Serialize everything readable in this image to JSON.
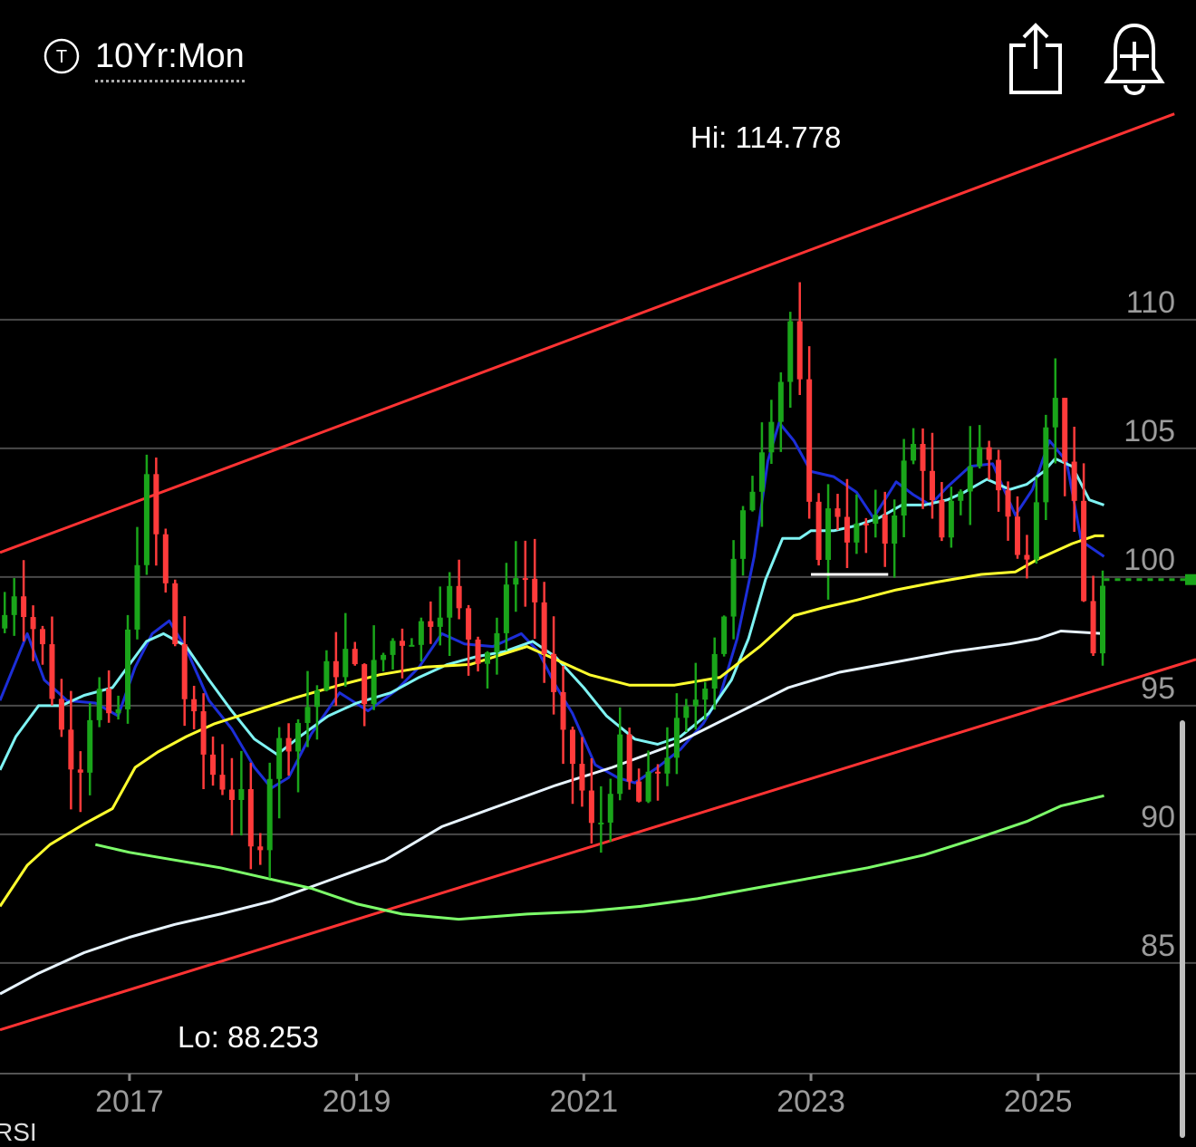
{
  "header": {
    "timeframe_label": "10Yr:Mon",
    "timeframe_icon": "T",
    "share_icon": "share-icon",
    "alert_icon": "add-alert-bell-icon"
  },
  "indicator_label": "RSI",
  "chart_data": {
    "type": "candlestick",
    "title": "",
    "annotations": {
      "hi": "Hi: 114.778",
      "lo": "Lo: 88.253"
    },
    "y_ticks": [
      110,
      105,
      100,
      95,
      90,
      85
    ],
    "x_ticks": [
      "2017",
      "2019",
      "2021",
      "2023",
      "2025"
    ],
    "ylim": [
      80.7,
      118.2
    ],
    "xlim": [
      2015.86,
      2026.39
    ],
    "grid": true,
    "colors": {
      "up": "#1aa51a",
      "down": "#ff3b3b",
      "channel": "#ff3333",
      "ma_blue": "#1c2ed8",
      "ma_cyan": "#7ff3f3",
      "ma_yellow": "#ffff2e",
      "ma_white": "#e8f4ff",
      "ma_green": "#7dff6a",
      "last_price": "#1aa51a"
    },
    "channel_lines": [
      {
        "name": "upper",
        "points": [
          [
            2015.86,
            100.95
          ],
          [
            2026.2,
            118.0
          ]
        ]
      },
      {
        "name": "lower",
        "points": [
          [
            2015.86,
            82.4
          ],
          [
            2026.39,
            96.8
          ]
        ]
      }
    ],
    "support_line": {
      "y": 100.1,
      "x": [
        2023.0,
        2023.68
      ]
    },
    "last_price": 99.9,
    "price_path": [
      [
        2015.86,
        98
      ],
      [
        2016.0,
        99.8
      ],
      [
        2016.25,
        97
      ],
      [
        2016.4,
        94
      ],
      [
        2016.55,
        92.5
      ],
      [
        2016.7,
        96
      ],
      [
        2016.85,
        93.5
      ],
      [
        2016.95,
        96
      ],
      [
        2017.05,
        100.5
      ],
      [
        2017.15,
        103.5
      ],
      [
        2017.3,
        100
      ],
      [
        2017.5,
        95
      ],
      [
        2017.7,
        92.5
      ],
      [
        2017.85,
        92
      ],
      [
        2018.0,
        91
      ],
      [
        2018.05,
        89
      ],
      [
        2018.15,
        90
      ],
      [
        2018.25,
        93
      ],
      [
        2018.5,
        94.5
      ],
      [
        2018.7,
        96
      ],
      [
        2018.9,
        97
      ],
      [
        2019.05,
        95.5
      ],
      [
        2019.3,
        97.5
      ],
      [
        2019.55,
        98
      ],
      [
        2019.8,
        99.5
      ],
      [
        2019.95,
        98
      ],
      [
        2020.1,
        97
      ],
      [
        2020.25,
        98
      ],
      [
        2020.4,
        100.5
      ],
      [
        2020.55,
        99.5
      ],
      [
        2020.7,
        96
      ],
      [
        2020.8,
        93.5
      ],
      [
        2020.95,
        92.5
      ],
      [
        2021.05,
        90
      ],
      [
        2021.15,
        90.5
      ],
      [
        2021.3,
        93.5
      ],
      [
        2021.45,
        91
      ],
      [
        2021.6,
        92
      ],
      [
        2021.75,
        93.5
      ],
      [
        2021.9,
        94.5
      ],
      [
        2022.05,
        96
      ],
      [
        2022.2,
        98
      ],
      [
        2022.35,
        101
      ],
      [
        2022.5,
        104
      ],
      [
        2022.6,
        106
      ],
      [
        2022.75,
        108
      ],
      [
        2022.82,
        110
      ],
      [
        2022.88,
        109
      ],
      [
        2022.95,
        103
      ],
      [
        2023.05,
        101
      ],
      [
        2023.2,
        103
      ],
      [
        2023.35,
        101.5
      ],
      [
        2023.5,
        102
      ],
      [
        2023.65,
        101.5
      ],
      [
        2023.8,
        104
      ],
      [
        2023.95,
        105.5
      ],
      [
        2024.05,
        103
      ],
      [
        2024.15,
        101
      ],
      [
        2024.3,
        103.5
      ],
      [
        2024.45,
        105
      ],
      [
        2024.6,
        104.5
      ],
      [
        2024.75,
        102
      ],
      [
        2024.85,
        100
      ],
      [
        2025.0,
        104
      ],
      [
        2025.1,
        107.5
      ],
      [
        2025.2,
        106
      ],
      [
        2025.3,
        103
      ],
      [
        2025.4,
        99
      ],
      [
        2025.5,
        97
      ],
      [
        2025.58,
        99.9
      ]
    ],
    "series": [
      {
        "points": [
          [
            2015.86,
            95.2
          ],
          [
            2016.1,
            97.8
          ],
          [
            2016.25,
            96
          ],
          [
            2016.45,
            95.2
          ],
          [
            2016.7,
            95.1
          ],
          [
            2016.9,
            94.6
          ],
          [
            2017.05,
            96.5
          ],
          [
            2017.2,
            97.8
          ],
          [
            2017.35,
            98.3
          ],
          [
            2017.5,
            97.2
          ],
          [
            2017.7,
            95.2
          ],
          [
            2017.9,
            94.1
          ],
          [
            2018.1,
            92.6
          ],
          [
            2018.25,
            91.8
          ],
          [
            2018.4,
            92.2
          ],
          [
            2018.6,
            93.9
          ],
          [
            2018.85,
            95.5
          ],
          [
            2019.1,
            94.8
          ],
          [
            2019.35,
            95.6
          ],
          [
            2019.55,
            96.5
          ],
          [
            2019.75,
            97.8
          ],
          [
            2019.95,
            97.4
          ],
          [
            2020.2,
            97.3
          ],
          [
            2020.45,
            97.8
          ],
          [
            2020.6,
            97.1
          ],
          [
            2020.75,
            95.8
          ],
          [
            2020.9,
            94.7
          ],
          [
            2021.1,
            92.7
          ],
          [
            2021.3,
            92.2
          ],
          [
            2021.45,
            92
          ],
          [
            2021.65,
            92.6
          ],
          [
            2021.85,
            93.3
          ],
          [
            2022.05,
            94.3
          ],
          [
            2022.2,
            95.4
          ],
          [
            2022.35,
            97.6
          ],
          [
            2022.5,
            100.8
          ],
          [
            2022.62,
            104.5
          ],
          [
            2022.72,
            106
          ],
          [
            2022.85,
            105.3
          ],
          [
            2023.0,
            104.1
          ],
          [
            2023.2,
            103.9
          ],
          [
            2023.4,
            103.3
          ],
          [
            2023.55,
            102.3
          ],
          [
            2023.75,
            103.7
          ],
          [
            2023.9,
            103.2
          ],
          [
            2024.05,
            102.8
          ],
          [
            2024.2,
            103.5
          ],
          [
            2024.4,
            104.3
          ],
          [
            2024.6,
            104.4
          ],
          [
            2024.8,
            102.4
          ],
          [
            2024.95,
            103.4
          ],
          [
            2025.1,
            105.3
          ],
          [
            2025.25,
            104.5
          ],
          [
            2025.38,
            101.4
          ],
          [
            2025.58,
            100.8
          ]
        ]
      },
      {
        "points": [
          [
            2015.86,
            92.5
          ],
          [
            2016.0,
            93.8
          ],
          [
            2016.2,
            95
          ],
          [
            2016.4,
            95
          ],
          [
            2016.6,
            95.4
          ],
          [
            2016.85,
            95.7
          ],
          [
            2017.0,
            96.6
          ],
          [
            2017.15,
            97.5
          ],
          [
            2017.3,
            97.8
          ],
          [
            2017.5,
            97.3
          ],
          [
            2017.7,
            96
          ],
          [
            2017.9,
            94.8
          ],
          [
            2018.1,
            93.7
          ],
          [
            2018.3,
            93.1
          ],
          [
            2018.5,
            93.8
          ],
          [
            2018.75,
            94.6
          ],
          [
            2019.0,
            95.1
          ],
          [
            2019.3,
            95.5
          ],
          [
            2019.55,
            96.1
          ],
          [
            2019.8,
            96.6
          ],
          [
            2020.05,
            96.9
          ],
          [
            2020.3,
            97.1
          ],
          [
            2020.55,
            97.5
          ],
          [
            2020.75,
            96.9
          ],
          [
            2021.0,
            95.7
          ],
          [
            2021.2,
            94.6
          ],
          [
            2021.45,
            93.7
          ],
          [
            2021.65,
            93.5
          ],
          [
            2021.85,
            93.8
          ],
          [
            2022.1,
            94.7
          ],
          [
            2022.3,
            96
          ],
          [
            2022.45,
            97.6
          ],
          [
            2022.6,
            99.9
          ],
          [
            2022.75,
            101.5
          ],
          [
            2022.9,
            101.5
          ],
          [
            2023.0,
            101.8
          ],
          [
            2023.2,
            101.8
          ],
          [
            2023.4,
            102
          ],
          [
            2023.6,
            102.3
          ],
          [
            2023.8,
            102.8
          ],
          [
            2024.0,
            102.8
          ],
          [
            2024.2,
            103
          ],
          [
            2024.35,
            103.3
          ],
          [
            2024.55,
            103.8
          ],
          [
            2024.75,
            103.4
          ],
          [
            2024.9,
            103.6
          ],
          [
            2025.05,
            104.1
          ],
          [
            2025.15,
            104.6
          ],
          [
            2025.3,
            104.3
          ],
          [
            2025.45,
            103
          ],
          [
            2025.58,
            102.8
          ]
        ]
      },
      {
        "points": [
          [
            2015.86,
            87.2
          ],
          [
            2016.1,
            88.8
          ],
          [
            2016.3,
            89.6
          ],
          [
            2016.6,
            90.4
          ],
          [
            2016.85,
            91
          ],
          [
            2017.05,
            92.6
          ],
          [
            2017.25,
            93.2
          ],
          [
            2017.5,
            93.8
          ],
          [
            2017.75,
            94.3
          ],
          [
            2018.1,
            94.8
          ],
          [
            2018.45,
            95.3
          ],
          [
            2018.85,
            95.8
          ],
          [
            2019.2,
            96.2
          ],
          [
            2019.6,
            96.5
          ],
          [
            2020.0,
            96.6
          ],
          [
            2020.5,
            97.3
          ],
          [
            2020.75,
            96.8
          ],
          [
            2021.05,
            96.2
          ],
          [
            2021.4,
            95.8
          ],
          [
            2021.8,
            95.8
          ],
          [
            2022.2,
            96.1
          ],
          [
            2022.55,
            97.3
          ],
          [
            2022.85,
            98.5
          ],
          [
            2023.1,
            98.8
          ],
          [
            2023.4,
            99.1
          ],
          [
            2023.75,
            99.5
          ],
          [
            2024.1,
            99.8
          ],
          [
            2024.5,
            100.1
          ],
          [
            2024.8,
            100.2
          ],
          [
            2025.0,
            100.7
          ],
          [
            2025.3,
            101.3
          ],
          [
            2025.5,
            101.6
          ],
          [
            2025.58,
            101.6
          ]
        ]
      },
      {
        "points": [
          [
            2015.86,
            83.8
          ],
          [
            2016.2,
            84.6
          ],
          [
            2016.6,
            85.4
          ],
          [
            2017.0,
            86
          ],
          [
            2017.4,
            86.5
          ],
          [
            2017.8,
            86.9
          ],
          [
            2018.25,
            87.4
          ],
          [
            2018.75,
            88.2
          ],
          [
            2019.25,
            89
          ],
          [
            2019.75,
            90.3
          ],
          [
            2020.25,
            91.1
          ],
          [
            2020.75,
            91.9
          ],
          [
            2021.25,
            92.6
          ],
          [
            2021.8,
            93.5
          ],
          [
            2022.3,
            94.6
          ],
          [
            2022.8,
            95.7
          ],
          [
            2023.25,
            96.3
          ],
          [
            2023.75,
            96.7
          ],
          [
            2024.25,
            97.1
          ],
          [
            2024.75,
            97.4
          ],
          [
            2025.0,
            97.6
          ],
          [
            2025.2,
            97.9
          ],
          [
            2025.58,
            97.8
          ]
        ]
      },
      {
        "points": [
          [
            2016.7,
            89.6
          ],
          [
            2017.0,
            89.3
          ],
          [
            2017.4,
            89
          ],
          [
            2017.8,
            88.7
          ],
          [
            2018.2,
            88.3
          ],
          [
            2018.6,
            87.9
          ],
          [
            2019.0,
            87.3
          ],
          [
            2019.4,
            86.9
          ],
          [
            2019.9,
            86.7
          ],
          [
            2020.5,
            86.9
          ],
          [
            2021.0,
            87
          ],
          [
            2021.5,
            87.2
          ],
          [
            2022.0,
            87.5
          ],
          [
            2022.5,
            87.9
          ],
          [
            2023.0,
            88.3
          ],
          [
            2023.5,
            88.7
          ],
          [
            2024.0,
            89.2
          ],
          [
            2024.5,
            89.9
          ],
          [
            2024.9,
            90.5
          ],
          [
            2025.2,
            91.1
          ],
          [
            2025.58,
            91.5
          ]
        ]
      }
    ]
  }
}
